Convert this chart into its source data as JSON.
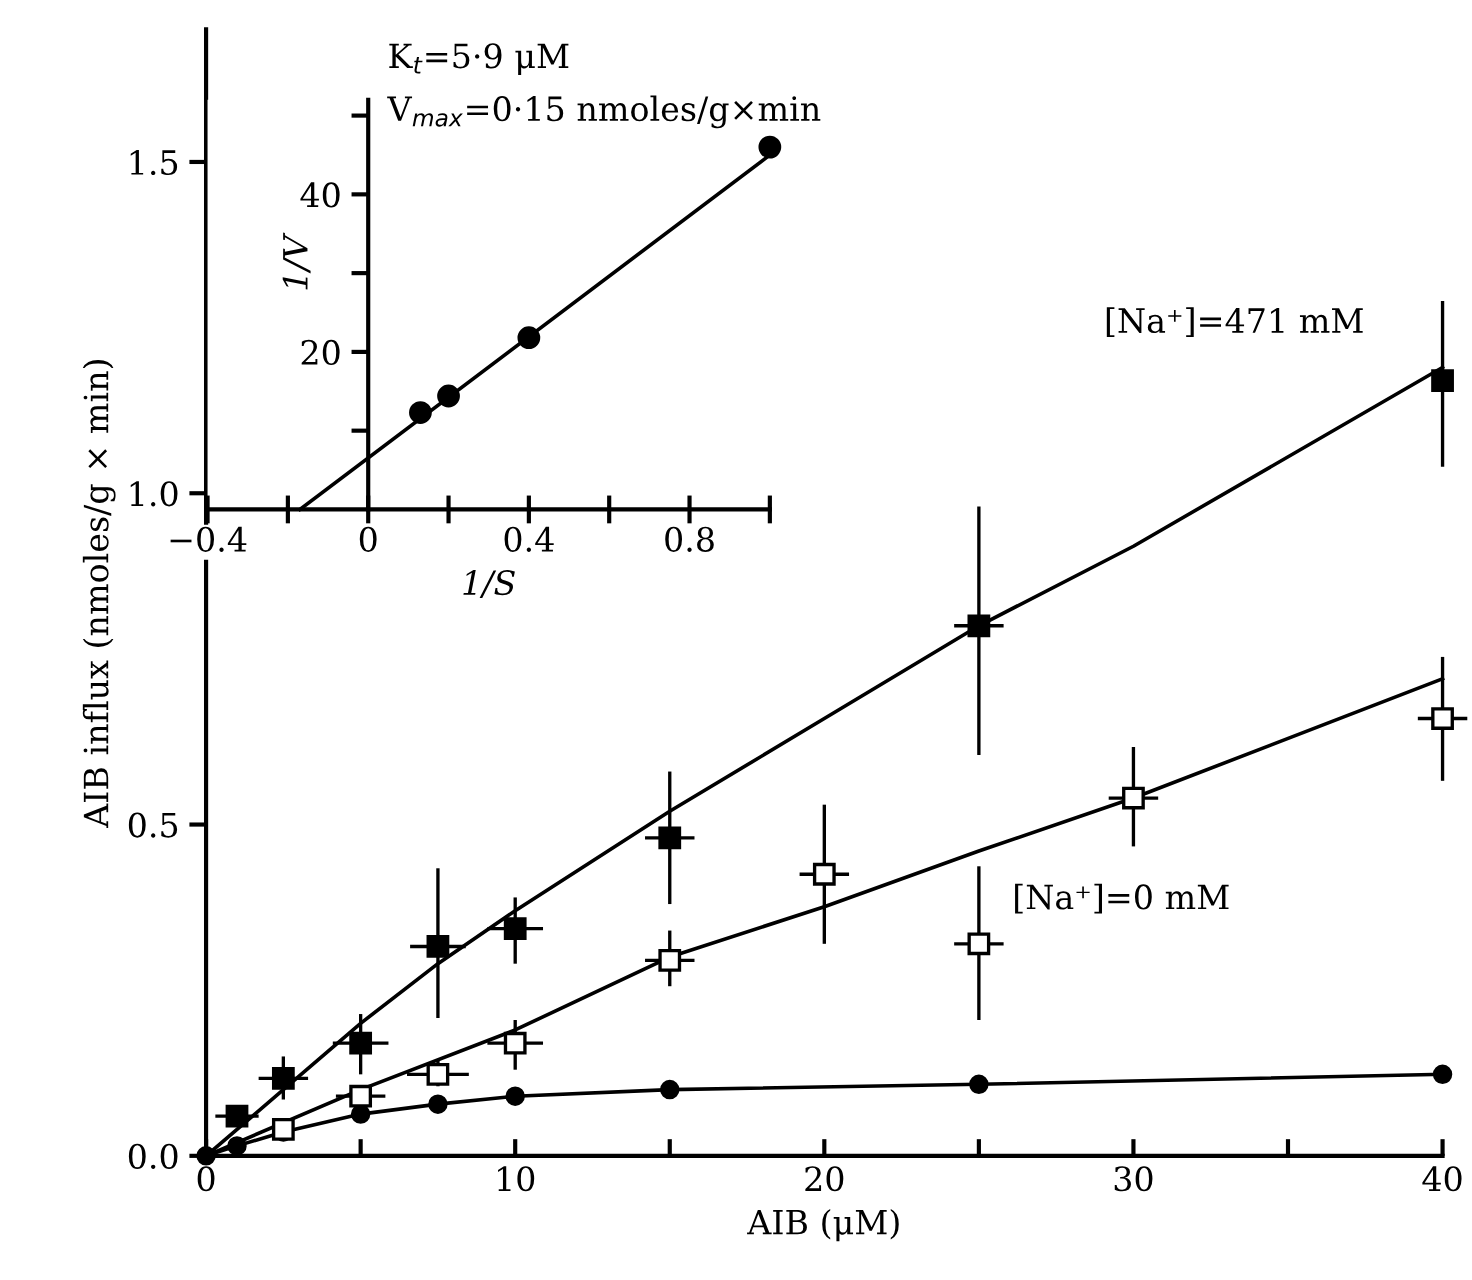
{
  "chart_data": [
    {
      "type": "scatter",
      "xlabel": "AIB (μM)",
      "ylabel": "AIB influx (nmoles/g × min)",
      "xlim": [
        0,
        40
      ],
      "ylim": [
        0,
        1.7
      ],
      "xticks": [
        0,
        {
          "value": 5,
          "label": null
        },
        10,
        {
          "value": 15,
          "label": null
        },
        20,
        {
          "value": 25,
          "label": null
        },
        30,
        {
          "value": 35,
          "label": null
        },
        40
      ],
      "yticks": [
        {
          "value": 0,
          "label": "0.0"
        },
        0.5,
        {
          "value": 1.0,
          "label": "1.0"
        },
        1.5
      ],
      "grid": false,
      "legend": false,
      "series": [
        {
          "color": "#000000",
          "marker": "square",
          "x": [
            1,
            2.5,
            5,
            7.5,
            10,
            15,
            25,
            40
          ],
          "values": [
            0.06,
            0.117,
            0.17,
            0.316,
            0.343,
            0.48,
            0.8,
            1.17
          ],
          "errors": [
            null,
            [
              0.085,
              0.15
            ],
            [
              0.123,
              0.214
            ],
            [
              0.208,
              0.434
            ],
            [
              0.29,
              0.39
            ],
            [
              0.38,
              0.58
            ],
            [
              0.605,
              0.98
            ],
            [
              1.04,
              1.29
            ]
          ],
          "xerrors": [
            0.7,
            0.8,
            0.9,
            0.9,
            0.9,
            0.8,
            0.8,
            null
          ]
        },
        {
          "type": "line",
          "color": "#000000",
          "marker": "none",
          "x": [
            0,
            2.5,
            5,
            7.5,
            10,
            15,
            20,
            25,
            30,
            40
          ],
          "values": [
            0,
            0.1,
            0.2,
            0.29,
            0.37,
            0.52,
            0.66,
            0.8,
            0.92,
            1.19
          ]
        },
        {
          "color": "#ffffff",
          "marker": "square",
          "x": [
            2.5,
            5,
            7.5,
            10,
            15,
            20,
            25,
            30,
            40
          ],
          "values": [
            0.04,
            0.09,
            0.123,
            0.17,
            0.295,
            0.425,
            0.32,
            0.54,
            0.66
          ],
          "errors": [
            null,
            null,
            [
              0.105,
              0.145
            ],
            [
              0.13,
              0.205
            ],
            [
              0.256,
              0.34
            ],
            [
              0.32,
              0.53
            ],
            [
              0.205,
              0.437
            ],
            [
              0.467,
              0.617
            ],
            [
              0.566,
              0.753
            ]
          ],
          "xerrors": [
            null,
            0.8,
            1,
            0.9,
            0.8,
            0.8,
            0.8,
            0.8,
            0.8
          ]
        },
        {
          "type": "line",
          "color": "#000000",
          "marker": "none",
          "x": [
            0,
            5,
            10,
            15,
            20,
            25,
            30,
            40
          ],
          "values": [
            0,
            0.1,
            0.19,
            0.3,
            0.376,
            0.46,
            0.54,
            0.72
          ]
        },
        {
          "type": "line",
          "color": "#000000",
          "marker": "circle",
          "x": [
            0,
            1,
            2.5,
            5,
            7.5,
            10,
            15,
            25,
            40
          ],
          "values": [
            0,
            0.015,
            0.036,
            0.063,
            0.078,
            0.09,
            0.1,
            0.108,
            0.123
          ]
        }
      ],
      "annotations": [
        {
          "text": "[Na⁺]=471 mM",
          "x": 40,
          "y": 1.19
        },
        {
          "text": "[Na⁺]=0 mM",
          "x": 25,
          "y": 0.32
        }
      ]
    },
    {
      "type": "scatter",
      "xlabel": "1/S",
      "ylabel": "1/V",
      "xlim": [
        -0.4,
        1.0
      ],
      "ylim": [
        0,
        52
      ],
      "xticks": [
        {
          "value": -0.4,
          "label": "−0.4"
        },
        {
          "value": -0.2,
          "label": null
        },
        0,
        {
          "value": 0.2,
          "label": null
        },
        0.4,
        {
          "value": 0.6,
          "label": null
        },
        0.8,
        {
          "value": 1.0,
          "label": null
        }
      ],
      "yticks": [
        {
          "value": 10,
          "label": null
        },
        20,
        {
          "value": 30,
          "label": null
        },
        40,
        {
          "value": 50,
          "label": null
        }
      ],
      "grid": false,
      "legend": false,
      "series": [
        {
          "color": "#000000",
          "marker": "circle",
          "x": [
            0.13,
            0.2,
            0.4,
            1.0
          ],
          "values": [
            12.3,
            14.4,
            21.8,
            46
          ]
        },
        {
          "type": "line",
          "color": "#000000",
          "marker": "none",
          "x": [
            -0.17,
            1.0
          ],
          "values": [
            0,
            45
          ]
        }
      ],
      "annotations": [
        "K$_{t}$=5·9 μM",
        "V$_{max}$=0·15 nmoles/g×min"
      ]
    }
  ]
}
